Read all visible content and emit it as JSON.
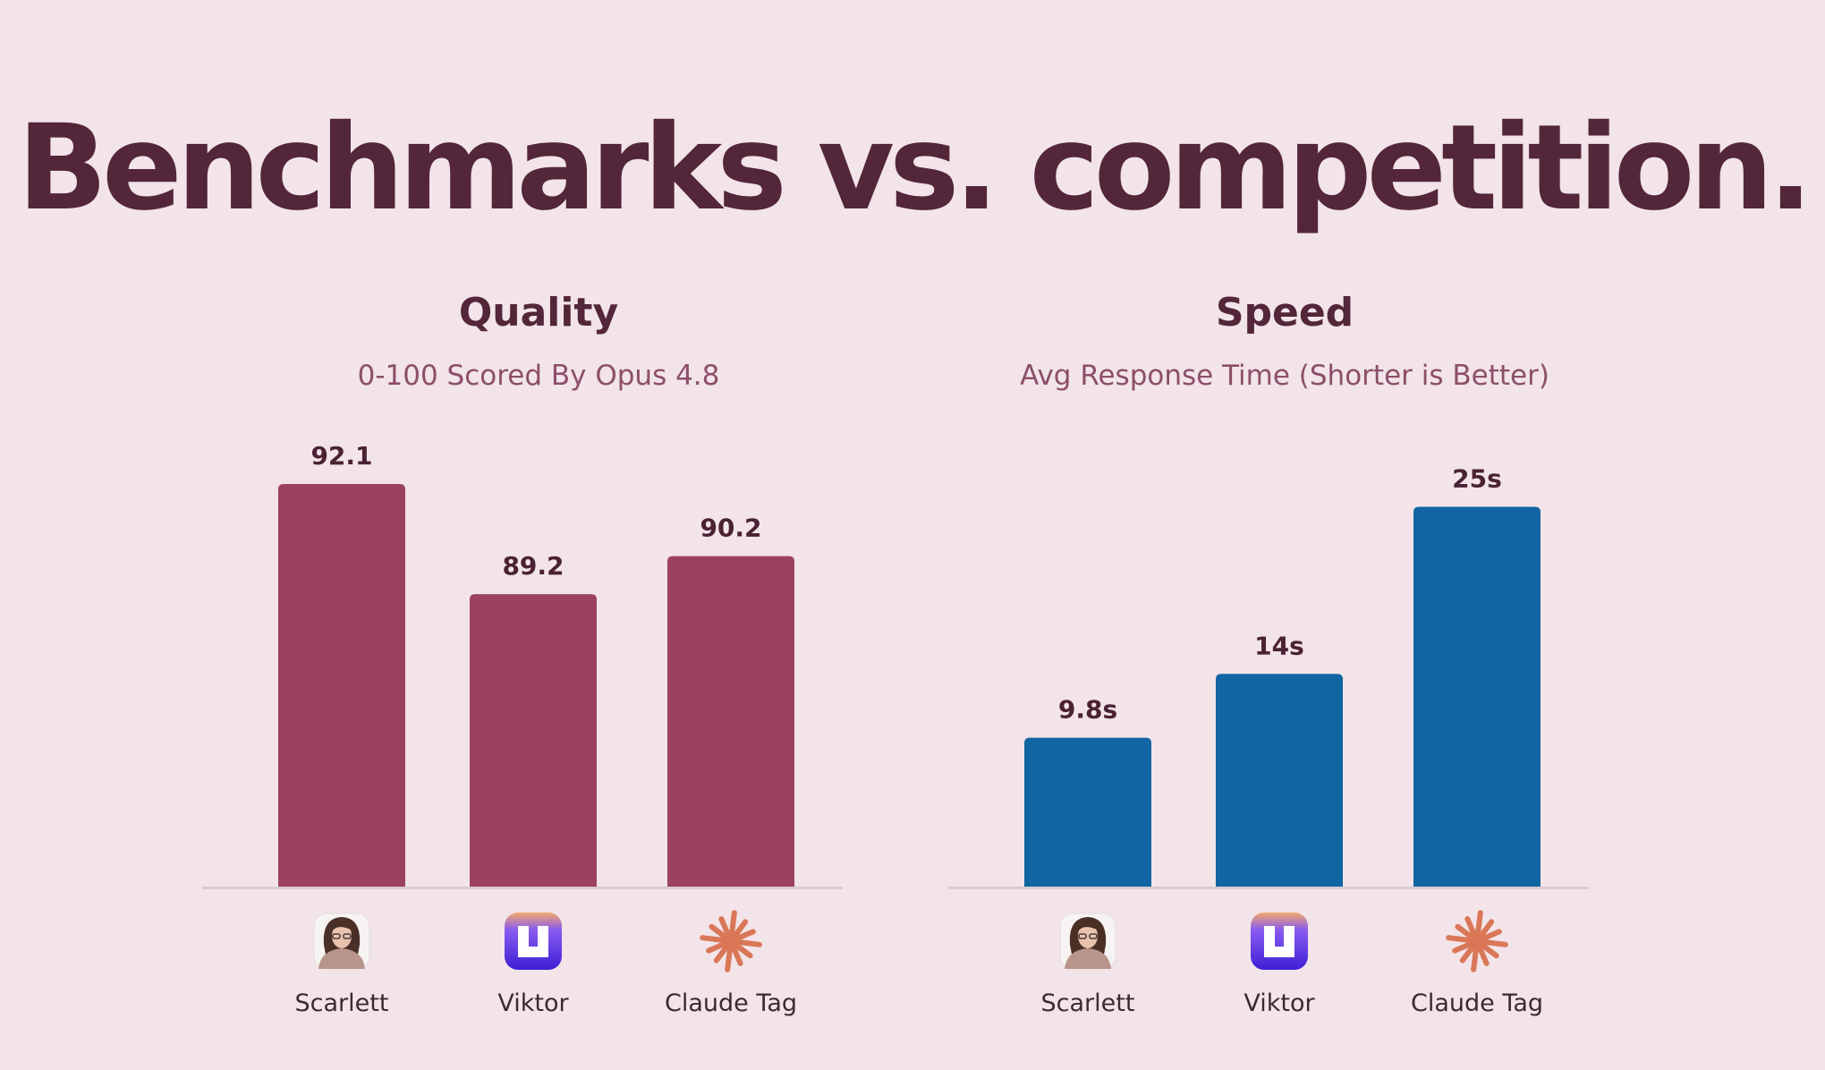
{
  "headline": "Benchmarks vs. competition.",
  "colors": {
    "background": "#f2e4e9",
    "text": "#532639",
    "quality_bar": "#9d425e",
    "speed_bar": "#1065a2",
    "axis": "#d6ccd1"
  },
  "chart_data": [
    {
      "type": "bar",
      "title": "Quality",
      "subtitle": "0-100 Scored By Opus 4.8",
      "categories": [
        "Scarlett",
        "Viktor",
        "Claude Tag"
      ],
      "category_icons": [
        "scarlett-avatar-icon",
        "viktor-logo-icon",
        "claude-asterisk-icon"
      ],
      "values": [
        92.1,
        89.2,
        90.2
      ],
      "value_labels": [
        "92.1",
        "89.2",
        "90.2"
      ],
      "ylim": [
        81.5,
        92.1
      ],
      "grid": false,
      "legend": "none",
      "color": "#9d425e"
    },
    {
      "type": "bar",
      "title": "Speed",
      "subtitle": "Avg Response Time (Shorter is Better)",
      "categories": [
        "Scarlett",
        "Viktor",
        "Claude Tag"
      ],
      "category_icons": [
        "scarlett-avatar-icon",
        "viktor-logo-icon",
        "claude-asterisk-icon"
      ],
      "values": [
        9.8,
        14,
        25
      ],
      "value_labels": [
        "9.8s",
        "14s",
        "25s"
      ],
      "ylim": [
        0,
        26.5
      ],
      "grid": false,
      "legend": "none",
      "color": "#1065a2"
    }
  ]
}
